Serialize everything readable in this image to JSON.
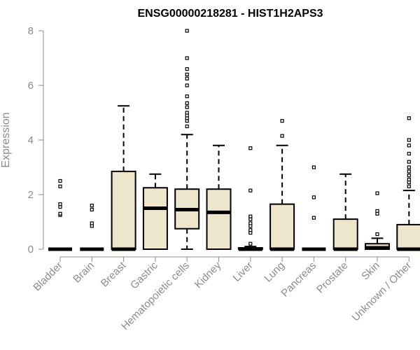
{
  "chart_data": {
    "type": "boxplot",
    "title": "ENSG00000218281 - HIST1H2APS3",
    "xlabel": "",
    "ylabel": "Expression",
    "ylim": [
      0,
      8
    ],
    "yticks": [
      0,
      2,
      4,
      6,
      8
    ],
    "categories": [
      "Bladder",
      "Brain",
      "Breast",
      "Gastric",
      "Hematopoietic cells",
      "Kidney",
      "Liver",
      "Lung",
      "Pancreas",
      "Prostate",
      "Skin",
      "Unknown / Other"
    ],
    "boxes": [
      {
        "category": "Bladder",
        "min": 0,
        "q1": 0,
        "median": 0,
        "q3": 0,
        "max": 0,
        "outliers": [
          1.25,
          1.3,
          1.55,
          1.65,
          2.3,
          2.5
        ]
      },
      {
        "category": "Brain",
        "min": 0,
        "q1": 0,
        "median": 0,
        "q3": 0,
        "max": 0,
        "outliers": [
          0.85,
          0.95,
          1.45,
          1.6
        ]
      },
      {
        "category": "Breast",
        "min": 0,
        "q1": 0,
        "median": 0,
        "q3": 2.85,
        "max": 5.25,
        "outliers": []
      },
      {
        "category": "Gastric",
        "min": 0,
        "q1": 0,
        "median": 1.5,
        "q3": 2.25,
        "max": 2.75,
        "outliers": []
      },
      {
        "category": "Hematopoietic cells",
        "min": 0,
        "q1": 0.75,
        "median": 1.45,
        "q3": 2.2,
        "max": 4.2,
        "outliers": [
          4.5,
          4.7,
          4.8,
          4.9,
          5.0,
          5.2,
          5.35,
          5.6,
          6.0,
          6.25,
          6.4,
          6.6,
          7.0,
          8.0
        ]
      },
      {
        "category": "Kidney",
        "min": 0,
        "q1": 0,
        "median": 1.35,
        "q3": 2.2,
        "max": 3.8,
        "outliers": []
      },
      {
        "category": "Liver",
        "min": 0,
        "q1": 0,
        "median": 0,
        "q3": 0.05,
        "max": 0.1,
        "outliers": [
          0.2,
          0.6,
          0.7,
          0.85,
          0.95,
          1.1,
          1.2,
          2.15,
          3.7
        ]
      },
      {
        "category": "Lung",
        "min": 0,
        "q1": 0,
        "median": 0,
        "q3": 1.65,
        "max": 3.8,
        "outliers": [
          4.15,
          4.7
        ]
      },
      {
        "category": "Pancreas",
        "min": 0,
        "q1": 0,
        "median": 0,
        "q3": 0,
        "max": 0,
        "outliers": [
          1.15,
          1.9,
          3.0
        ]
      },
      {
        "category": "Prostate",
        "min": 0,
        "q1": 0,
        "median": 0,
        "q3": 1.1,
        "max": 2.75,
        "outliers": []
      },
      {
        "category": "Skin",
        "min": 0,
        "q1": 0,
        "median": 0.05,
        "q3": 0.2,
        "max": 0.4,
        "outliers": [
          0.55,
          1.3,
          1.4,
          2.05
        ]
      },
      {
        "category": "Unknown / Other",
        "min": 0,
        "q1": 0,
        "median": 0,
        "q3": 0.9,
        "max": 2.15,
        "outliers": [
          2.3,
          2.45,
          2.55,
          2.7,
          2.85,
          3.0,
          3.2,
          3.5,
          3.8,
          4.0,
          4.8
        ]
      }
    ],
    "colors": {
      "box_fill": "#ede6cc",
      "stroke": "#000000",
      "axis": "#8c8c8c"
    }
  }
}
